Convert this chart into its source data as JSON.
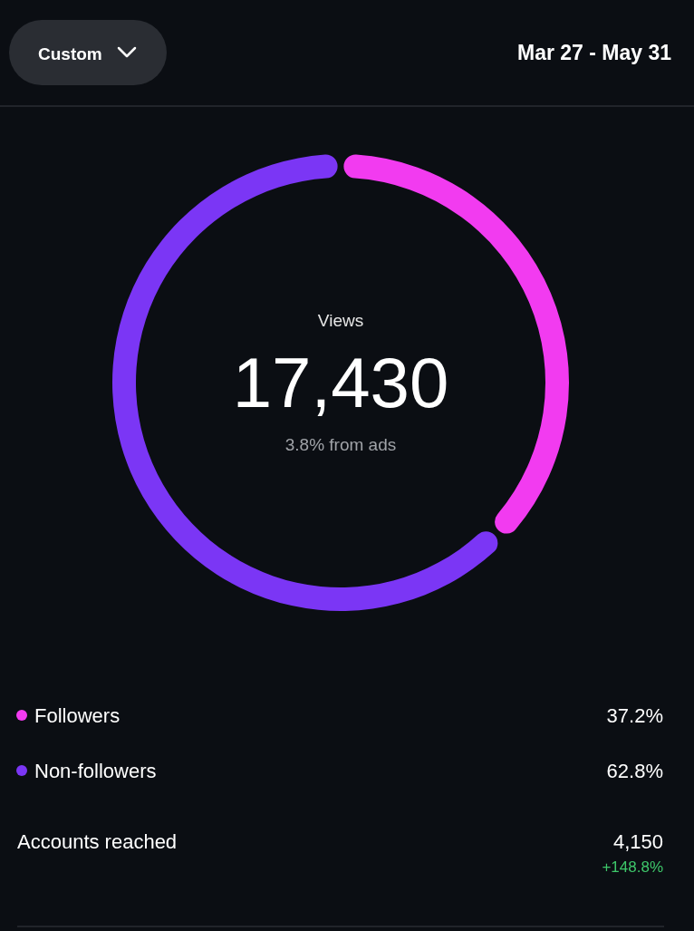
{
  "chart_data": {
    "type": "donut",
    "title": "Views",
    "subtitle": "17,430",
    "categories": [
      "Followers",
      "Non-followers"
    ],
    "values": [
      37.2,
      62.8
    ],
    "colors": [
      "#f23bf0",
      "#7b36f5"
    ],
    "value_labels": [
      "37.2%",
      "62.8%"
    ],
    "legend": "bottom",
    "annotations": [
      "3.8% from ads",
      "Custom",
      "Mar 27 - May 31",
      "Accounts reached",
      "4,150",
      "+148.8%"
    ]
  }
}
